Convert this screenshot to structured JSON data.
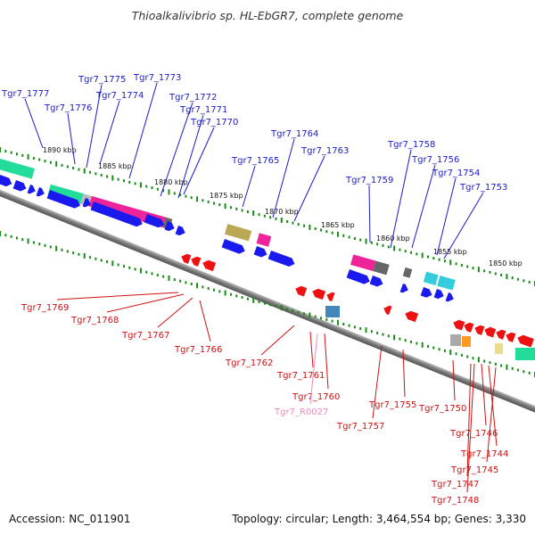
{
  "title": "Thioalkalivibrio sp. HL-EbGR7, complete genome",
  "footer": {
    "accession": "Accession: NC_011901",
    "summary": "Topology: circular; Length: 3,464,554 bp; Genes: 3,330"
  },
  "colors": {
    "forward_label": "#1a1acc",
    "reverse_label": "#cc1111",
    "rna_label": "#ee88bb",
    "backbone": "#888888",
    "tick": "#1a8a1a"
  },
  "kbp_labels": [
    "1890 kbp",
    "1885 kbp",
    "1880 kbp",
    "1875 kbp",
    "1870 kbp",
    "1865 kbp",
    "1860 kbp",
    "1855 kbp",
    "1850 kbp"
  ],
  "forward_genes": [
    "Tgr7_1777",
    "Tgr7_1776",
    "Tgr7_1775",
    "Tgr7_1774",
    "Tgr7_1773",
    "Tgr7_1772",
    "Tgr7_1771",
    "Tgr7_1770",
    "Tgr7_1765",
    "Tgr7_1764",
    "Tgr7_1763",
    "Tgr7_1759",
    "Tgr7_1758",
    "Tgr7_1756",
    "Tgr7_1754",
    "Tgr7_1753"
  ],
  "reverse_genes": [
    "Tgr7_1769",
    "Tgr7_1768",
    "Tgr7_1767",
    "Tgr7_1766",
    "Tgr7_1762",
    "Tgr7_1761",
    "Tgr7_1760",
    "Tgr7_R0027",
    "Tgr7_1757",
    "Tgr7_1755",
    "Tgr7_1750",
    "Tgr7_1746",
    "Tgr7_1744",
    "Tgr7_1745",
    "Tgr7_1747",
    "Tgr7_1748"
  ]
}
